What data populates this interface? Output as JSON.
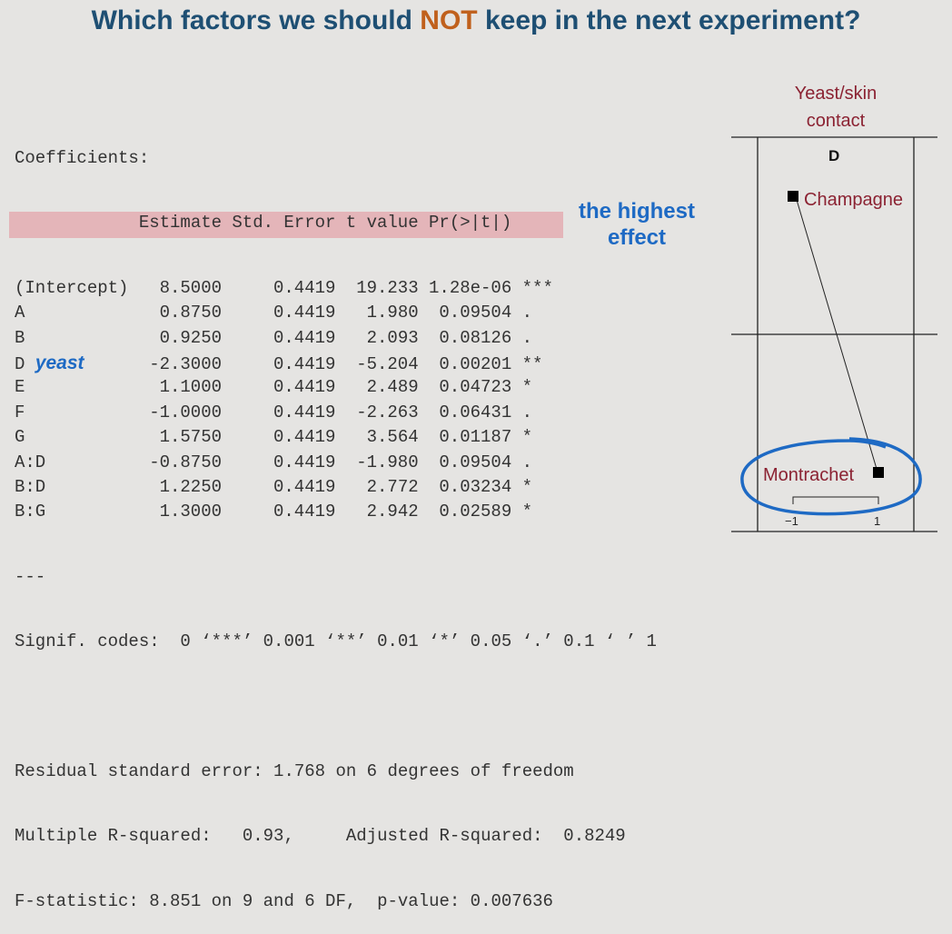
{
  "title": {
    "before": "Which factors we should ",
    "emphasis": "NOT",
    "after": " keep in the next experiment?"
  },
  "output": {
    "heading": "Coefficients:",
    "columns": [
      "Estimate",
      "Std. Error",
      "t value",
      "Pr(>|t|)"
    ],
    "rows": [
      {
        "name": "(Intercept)",
        "estimate": "8.5000",
        "se": "0.4419",
        "t": "19.233",
        "p": "1.28e-06",
        "sig": "***"
      },
      {
        "name": "A",
        "estimate": "0.8750",
        "se": "0.4419",
        "t": "1.980",
        "p": "0.09504",
        "sig": "."
      },
      {
        "name": "B",
        "estimate": "0.9250",
        "se": "0.4419",
        "t": "2.093",
        "p": "0.08126",
        "sig": "."
      },
      {
        "name": "D",
        "annotation": "yeast",
        "estimate": "-2.3000",
        "se": "0.4419",
        "t": "-5.204",
        "p": "0.00201",
        "sig": "**"
      },
      {
        "name": "E",
        "estimate": "1.1000",
        "se": "0.4419",
        "t": "2.489",
        "p": "0.04723",
        "sig": "*"
      },
      {
        "name": "F",
        "estimate": "-1.0000",
        "se": "0.4419",
        "t": "-2.263",
        "p": "0.06431",
        "sig": "."
      },
      {
        "name": "G",
        "estimate": "1.5750",
        "se": "0.4419",
        "t": "3.564",
        "p": "0.01187",
        "sig": "*"
      },
      {
        "name": "A:D",
        "estimate": "-0.8750",
        "se": "0.4419",
        "t": "-1.980",
        "p": "0.09504",
        "sig": "."
      },
      {
        "name": "B:D",
        "estimate": "1.2250",
        "se": "0.4419",
        "t": "2.772",
        "p": "0.03234",
        "sig": "*"
      },
      {
        "name": "B:G",
        "estimate": "1.3000",
        "se": "0.4419",
        "t": "2.942",
        "p": "0.02589",
        "sig": "*"
      }
    ],
    "separator": "---",
    "signif": "Signif. codes:  0 ‘***’ 0.001 ‘**’ 0.01 ‘*’ 0.05 ‘.’ 0.1 ‘ ’ 1",
    "residual": "Residual standard error: 1.768 on 6 degrees of freedom",
    "rsquared": "Multiple R-squared:   0.93,     Adjusted R-squared:  0.8249",
    "fstat": "F-statistic: 8.851 on 9 and 6 DF,  p-value: 0.007636"
  },
  "annotation": {
    "line1": "the highest",
    "line2": "effect"
  },
  "diagram": {
    "title_line1": "Yeast/skin",
    "title_line2": "contact",
    "factor": "D",
    "high_label": "Champagne",
    "low_label": "Montrachet",
    "axis_low": "−1",
    "axis_high": "1"
  }
}
